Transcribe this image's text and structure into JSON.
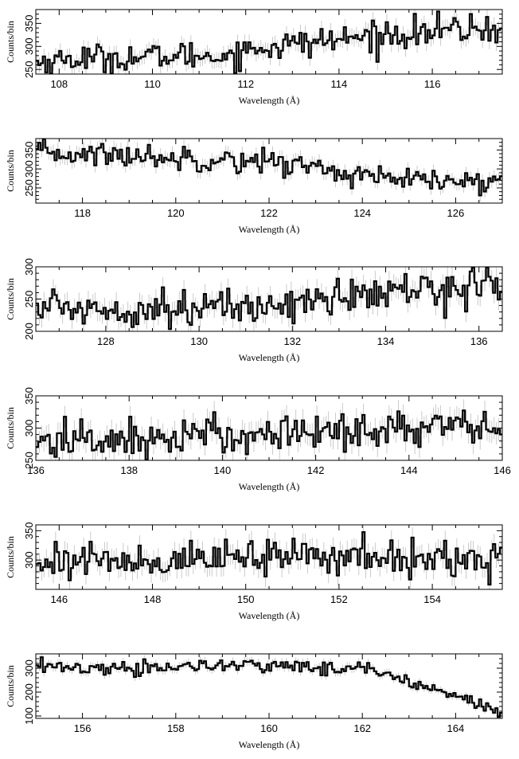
{
  "chart_data": [
    {
      "type": "line",
      "style": "step-histogram-with-errorbars",
      "xlabel": "Wavelength (Å)",
      "ylabel": "Counts/bin",
      "xlim": [
        107.5,
        117.5
      ],
      "ylim": [
        240,
        380
      ],
      "xticks": [
        "108",
        "110",
        "112",
        "114",
        "116"
      ],
      "yticks": [
        "250",
        "300",
        "350"
      ],
      "x": [
        107.5,
        108.5,
        109.5,
        110.5,
        111.5,
        112.5,
        113.5,
        114.5,
        115.5,
        116.5,
        117.5
      ],
      "values": [
        265,
        275,
        275,
        280,
        280,
        300,
        310,
        320,
        330,
        335,
        340
      ]
    },
    {
      "type": "line",
      "style": "step-histogram-with-errorbars",
      "xlabel": "Wavelength (Å)",
      "ylabel": "Counts/bin",
      "xlim": [
        117,
        127
      ],
      "ylim": [
        210,
        380
      ],
      "xticks": [
        "118",
        "120",
        "122",
        "124",
        "126"
      ],
      "yticks": [
        "250",
        "300",
        "350"
      ],
      "x": [
        117,
        118,
        119,
        120,
        121,
        122,
        123,
        124,
        125,
        126,
        127
      ],
      "values": [
        340,
        340,
        335,
        330,
        325,
        320,
        305,
        280,
        270,
        265,
        265
      ]
    },
    {
      "type": "line",
      "style": "step-histogram-with-errorbars",
      "xlabel": "Wavelength (Å)",
      "ylabel": "Counts/bin",
      "xlim": [
        126.5,
        136.5
      ],
      "ylim": [
        200,
        300
      ],
      "xticks": [
        "128",
        "130",
        "132",
        "134",
        "136"
      ],
      "yticks": [
        "200",
        "250",
        "300"
      ],
      "x": [
        126.5,
        127.5,
        128.5,
        129.5,
        130.5,
        131.5,
        132.5,
        133.5,
        134.5,
        135.5,
        136.5
      ],
      "values": [
        240,
        235,
        235,
        238,
        235,
        240,
        250,
        255,
        262,
        270,
        272
      ]
    },
    {
      "type": "line",
      "style": "step-histogram-with-errorbars",
      "xlabel": "Wavelength (Å)",
      "ylabel": "Counts/bin",
      "xlim": [
        136,
        146
      ],
      "ylim": [
        250,
        350
      ],
      "xticks": [
        "136",
        "138",
        "140",
        "142",
        "144",
        "146"
      ],
      "yticks": [
        "250",
        "300",
        "350"
      ],
      "x": [
        136,
        137,
        138,
        139,
        140,
        141,
        142,
        143,
        144,
        145,
        146
      ],
      "values": [
        278,
        282,
        282,
        285,
        290,
        292,
        295,
        298,
        300,
        300,
        300
      ]
    },
    {
      "type": "line",
      "style": "step-histogram-with-errorbars",
      "xlabel": "Wavelength (Å)",
      "ylabel": "Counts/bin",
      "xlim": [
        145.5,
        155.5
      ],
      "ylim": [
        250,
        360
      ],
      "xticks": [
        "146",
        "148",
        "150",
        "152",
        "154"
      ],
      "yticks": [
        "300",
        "350"
      ],
      "x": [
        145.5,
        146.5,
        147.5,
        148.5,
        149.5,
        150.5,
        151.5,
        152.5,
        153.5,
        154.5,
        155.5
      ],
      "values": [
        300,
        300,
        298,
        300,
        302,
        305,
        308,
        305,
        302,
        300,
        300
      ]
    },
    {
      "type": "line",
      "style": "step-histogram-with-errorbars",
      "xlabel": "Wavelength (Å)",
      "ylabel": "Counts/bin",
      "xlim": [
        155,
        165
      ],
      "ylim": [
        90,
        360
      ],
      "xticks": [
        "156",
        "158",
        "160",
        "162",
        "164"
      ],
      "yticks": [
        "100",
        "200",
        "300"
      ],
      "x": [
        155,
        156,
        157,
        158,
        159,
        160,
        161,
        162,
        162.5,
        163,
        163.5,
        164,
        164.5,
        165
      ],
      "values": [
        310,
        300,
        300,
        305,
        310,
        310,
        305,
        300,
        280,
        250,
        220,
        190,
        150,
        110
      ]
    }
  ]
}
